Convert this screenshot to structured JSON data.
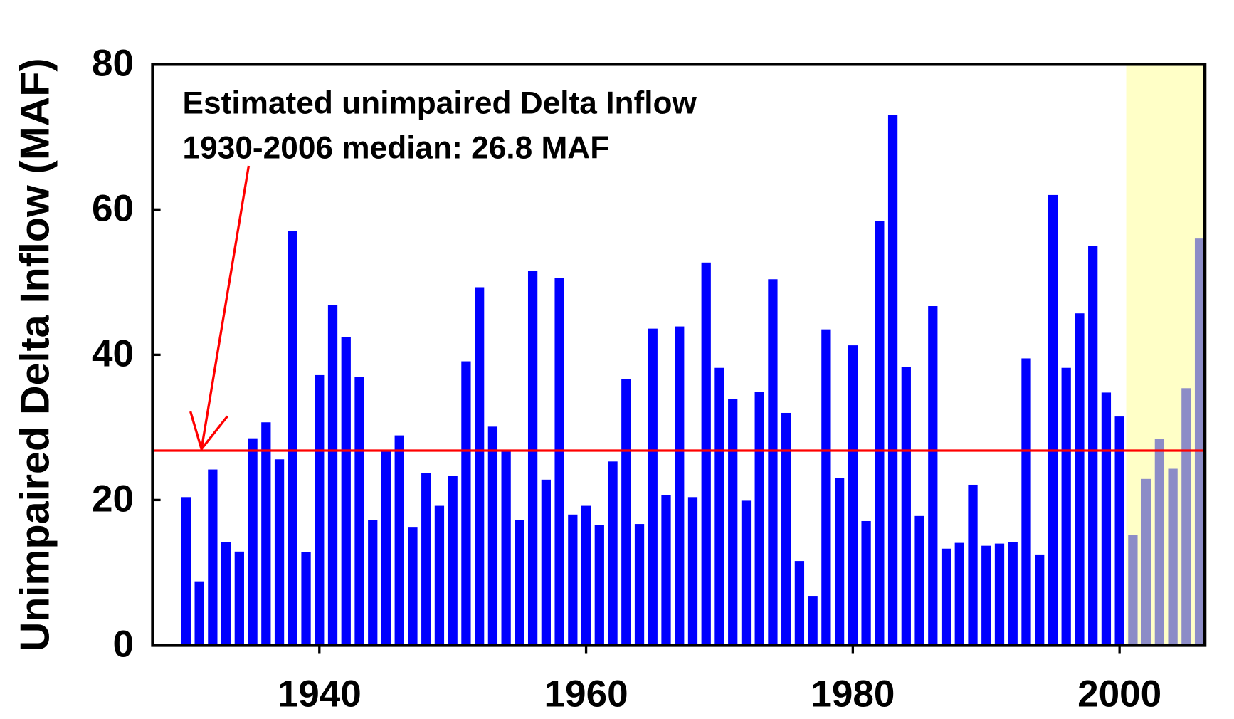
{
  "chart_data": {
    "type": "bar",
    "y_label": "Unimpaired Delta Inflow (MAF)",
    "annotation": [
      "Estimated unimpaired Delta Inflow",
      "1930-2006 median: 26.8 MAF"
    ],
    "median": 26.8,
    "median_color": "#ff0000",
    "x": [
      1930,
      1931,
      1932,
      1933,
      1934,
      1935,
      1936,
      1937,
      1938,
      1939,
      1940,
      1941,
      1942,
      1943,
      1944,
      1945,
      1946,
      1947,
      1948,
      1949,
      1950,
      1951,
      1952,
      1953,
      1954,
      1955,
      1956,
      1957,
      1958,
      1959,
      1960,
      1961,
      1962,
      1963,
      1964,
      1965,
      1966,
      1967,
      1968,
      1969,
      1970,
      1971,
      1972,
      1973,
      1974,
      1975,
      1976,
      1977,
      1978,
      1979,
      1980,
      1981,
      1982,
      1983,
      1984,
      1985,
      1986,
      1987,
      1988,
      1989,
      1990,
      1991,
      1992,
      1993,
      1994,
      1995,
      1996,
      1997,
      1998,
      1999,
      2000,
      2001,
      2002,
      2003,
      2004,
      2005,
      2006
    ],
    "values": [
      20.4,
      8.8,
      24.2,
      14.2,
      12.9,
      28.5,
      30.7,
      25.6,
      57.0,
      12.8,
      37.2,
      46.8,
      42.4,
      36.9,
      17.2,
      26.7,
      28.9,
      16.3,
      23.7,
      19.2,
      23.3,
      39.1,
      49.3,
      30.1,
      26.7,
      17.2,
      51.6,
      22.8,
      50.6,
      18.0,
      19.2,
      16.6,
      25.3,
      36.7,
      16.7,
      43.6,
      20.7,
      43.9,
      20.4,
      52.7,
      38.2,
      33.9,
      19.9,
      34.9,
      50.4,
      32.0,
      11.6,
      6.8,
      43.5,
      23.0,
      41.3,
      17.1,
      58.4,
      73.0,
      38.3,
      17.8,
      46.7,
      13.3,
      14.1,
      22.1,
      13.7,
      14.0,
      14.2,
      39.5,
      12.5,
      62.0,
      38.2,
      45.7,
      55.0,
      34.8,
      31.5,
      15.2,
      22.9,
      28.4,
      24.3,
      35.4,
      56.0
    ],
    "color": "#0000ff",
    "highlight_x": [
      2000.5,
      2006.4
    ],
    "highlight_color": "#ffff99",
    "xlim": [
      1927.5,
      2006.4
    ],
    "xticks": [
      1940,
      1960,
      1980,
      2000
    ],
    "ylim": [
      0,
      80
    ],
    "yticks": [
      0,
      20,
      40,
      60,
      80
    ]
  }
}
